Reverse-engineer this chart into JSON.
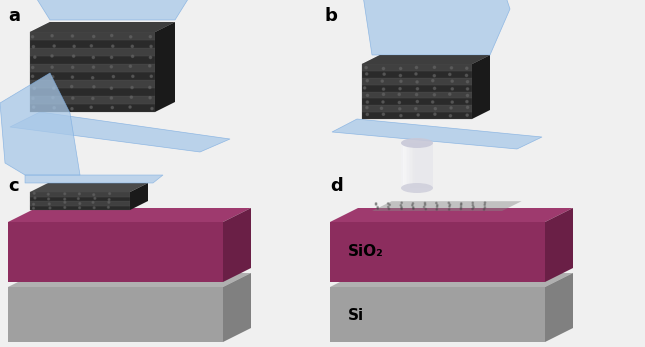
{
  "bg_color": "#f0f0f0",
  "label_a": "a",
  "label_b": "b",
  "label_c": "c",
  "label_d": "d",
  "sio2_text": "SiO₂",
  "si_text": "Si",
  "tape_color": "#a8c8e8",
  "tape_edge": "#7aabe0",
  "graphite_dark": "#2a2a2a",
  "graphite_mid": "#404040",
  "graphite_light": "#585858",
  "graphite_top": "#4a4a4a",
  "graphite_side": "#1a1a1a",
  "sio2_front_color": "#8c2d5e",
  "sio2_top_color": "#9e3a6e",
  "sio2_side_color": "#6a1f46",
  "si_front_color": "#a0a0a0",
  "si_top_color": "#b0b0b0",
  "si_side_color": "#808080",
  "label_fontsize": 13,
  "anno_fontsize": 11
}
